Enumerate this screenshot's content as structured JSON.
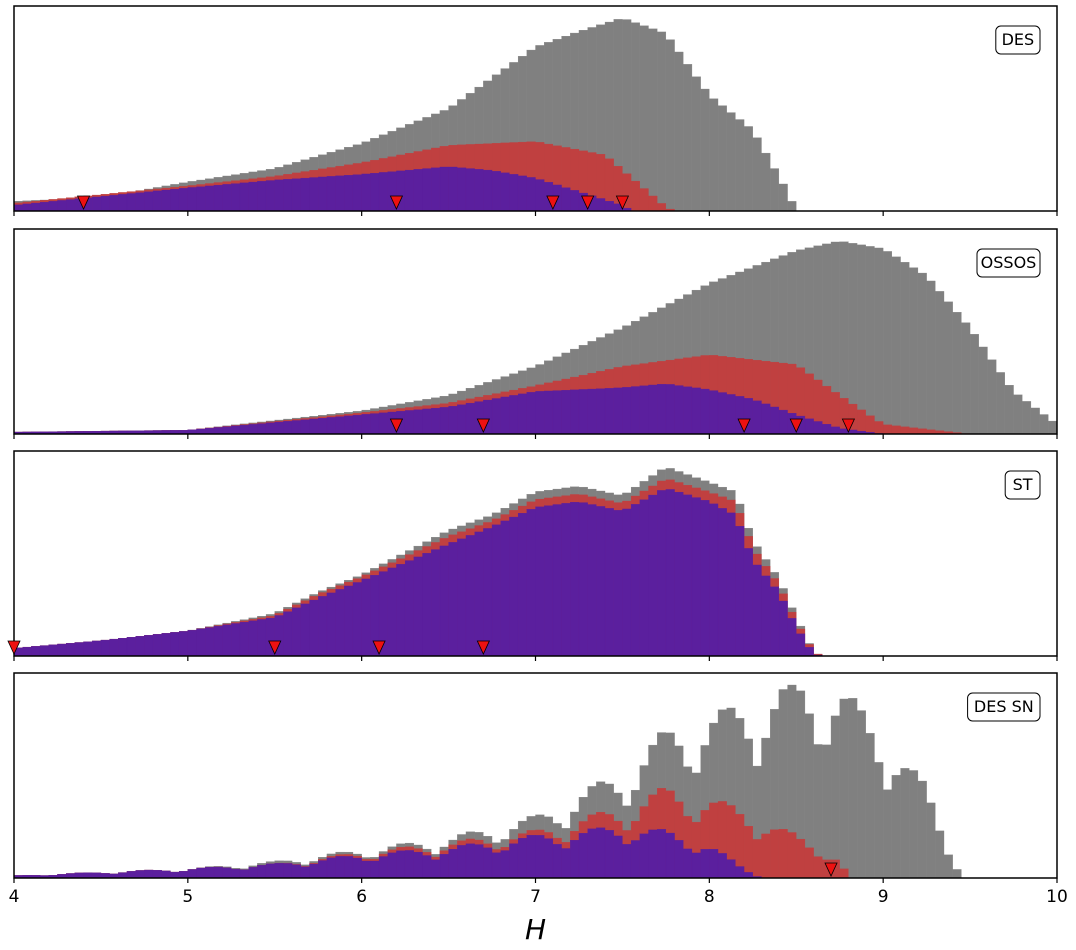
{
  "colors": {
    "all": "#808080",
    "mid": "#c04040",
    "inner": "#5b1f9e",
    "marker": "#ee1111",
    "frame": "#000000"
  },
  "chart_data": {
    "type": "bar",
    "x_axis": {
      "label": "H",
      "range": [
        4,
        10
      ],
      "ticks": [
        "4",
        "5",
        "6",
        "7",
        "8",
        "9",
        "10"
      ]
    },
    "bin_width": 0.05,
    "grid": false,
    "legend": "none",
    "panels": [
      {
        "label": "DES",
        "ylim": [
          0,
          1.0
        ],
        "markers": [
          4.4,
          6.2,
          7.1,
          7.3,
          7.5
        ],
        "series": [
          {
            "values_key": "gray",
            "profile": [
              [
                4.0,
                0.05
              ],
              [
                4.5,
                0.07
              ],
              [
                5.0,
                0.15
              ],
              [
                5.5,
                0.22
              ],
              [
                6.0,
                0.35
              ],
              [
                6.5,
                0.53
              ],
              [
                7.0,
                0.85
              ],
              [
                7.25,
                0.93
              ],
              [
                7.5,
                1.0
              ],
              [
                7.75,
                0.92
              ],
              [
                8.0,
                0.6
              ],
              [
                8.25,
                0.42
              ],
              [
                8.45,
                0.1
              ],
              [
                8.5,
                0.0
              ]
            ]
          },
          {
            "values_key": "red",
            "profile": [
              [
                4.0,
                0.04
              ],
              [
                5.0,
                0.13
              ],
              [
                5.5,
                0.18
              ],
              [
                6.0,
                0.25
              ],
              [
                6.5,
                0.34
              ],
              [
                7.0,
                0.36
              ],
              [
                7.4,
                0.29
              ],
              [
                7.75,
                0.02
              ],
              [
                7.8,
                0.0
              ]
            ]
          },
          {
            "values_key": "purple",
            "profile": [
              [
                4.0,
                0.03
              ],
              [
                5.0,
                0.12
              ],
              [
                5.5,
                0.16
              ],
              [
                6.0,
                0.19
              ],
              [
                6.5,
                0.23
              ],
              [
                6.75,
                0.21
              ],
              [
                7.0,
                0.17
              ],
              [
                7.25,
                0.1
              ],
              [
                7.5,
                0.03
              ],
              [
                7.55,
                0.0
              ]
            ]
          }
        ]
      },
      {
        "label": "OSSOS",
        "ylim": [
          0,
          1.0
        ],
        "markers": [
          6.2,
          6.7,
          8.2,
          8.5,
          8.8
        ],
        "series": [
          {
            "values_key": "gray",
            "profile": [
              [
                4.0,
                0.01
              ],
              [
                5.0,
                0.02
              ],
              [
                6.0,
                0.12
              ],
              [
                6.5,
                0.2
              ],
              [
                7.0,
                0.35
              ],
              [
                7.5,
                0.55
              ],
              [
                8.0,
                0.78
              ],
              [
                8.5,
                0.95
              ],
              [
                8.75,
                1.0
              ],
              [
                9.0,
                0.96
              ],
              [
                9.25,
                0.82
              ],
              [
                9.5,
                0.55
              ],
              [
                9.75,
                0.22
              ],
              [
                10.0,
                0.05
              ]
            ]
          },
          {
            "values_key": "red",
            "profile": [
              [
                4.0,
                0.01
              ],
              [
                5.0,
                0.02
              ],
              [
                6.0,
                0.11
              ],
              [
                6.5,
                0.16
              ],
              [
                7.0,
                0.25
              ],
              [
                7.5,
                0.35
              ],
              [
                8.0,
                0.41
              ],
              [
                8.5,
                0.36
              ],
              [
                8.75,
                0.2
              ],
              [
                9.0,
                0.05
              ],
              [
                9.5,
                0.0
              ]
            ]
          },
          {
            "values_key": "purple",
            "profile": [
              [
                4.0,
                0.01
              ],
              [
                5.0,
                0.02
              ],
              [
                6.0,
                0.1
              ],
              [
                6.5,
                0.14
              ],
              [
                7.0,
                0.22
              ],
              [
                7.5,
                0.24
              ],
              [
                7.75,
                0.26
              ],
              [
                8.0,
                0.23
              ],
              [
                8.25,
                0.18
              ],
              [
                8.5,
                0.1
              ],
              [
                8.75,
                0.03
              ],
              [
                9.0,
                0.0
              ]
            ]
          }
        ]
      },
      {
        "label": "ST",
        "ylim": [
          0,
          1.0
        ],
        "markers": [
          4.0,
          5.5,
          6.1,
          6.7
        ],
        "series": [
          {
            "values_key": "gray",
            "profile": [
              [
                4.0,
                0.04
              ],
              [
                4.5,
                0.08
              ],
              [
                5.0,
                0.13
              ],
              [
                5.5,
                0.22
              ],
              [
                5.75,
                0.33
              ],
              [
                6.0,
                0.42
              ],
              [
                6.5,
                0.65
              ],
              [
                6.75,
                0.73
              ],
              [
                7.0,
                0.85
              ],
              [
                7.25,
                0.88
              ],
              [
                7.5,
                0.83
              ],
              [
                7.75,
                0.98
              ],
              [
                8.0,
                0.9
              ],
              [
                8.15,
                0.85
              ],
              [
                8.25,
                0.6
              ],
              [
                8.4,
                0.4
              ],
              [
                8.5,
                0.2
              ],
              [
                8.6,
                0.02
              ],
              [
                8.65,
                0.0
              ]
            ]
          },
          {
            "values_key": "red",
            "profile": [
              [
                4.0,
                0.04
              ],
              [
                4.5,
                0.08
              ],
              [
                5.0,
                0.13
              ],
              [
                5.5,
                0.21
              ],
              [
                5.75,
                0.32
              ],
              [
                6.0,
                0.41
              ],
              [
                6.5,
                0.62
              ],
              [
                6.75,
                0.7
              ],
              [
                7.0,
                0.81
              ],
              [
                7.25,
                0.84
              ],
              [
                7.5,
                0.79
              ],
              [
                7.75,
                0.92
              ],
              [
                8.0,
                0.85
              ],
              [
                8.15,
                0.8
              ],
              [
                8.25,
                0.56
              ],
              [
                8.4,
                0.37
              ],
              [
                8.5,
                0.18
              ],
              [
                8.6,
                0.02
              ],
              [
                8.65,
                0.0
              ]
            ]
          },
          {
            "values_key": "purple",
            "profile": [
              [
                4.0,
                0.04
              ],
              [
                4.5,
                0.08
              ],
              [
                5.0,
                0.13
              ],
              [
                5.5,
                0.2
              ],
              [
                5.75,
                0.3
              ],
              [
                6.0,
                0.39
              ],
              [
                6.5,
                0.58
              ],
              [
                6.75,
                0.67
              ],
              [
                7.0,
                0.77
              ],
              [
                7.25,
                0.8
              ],
              [
                7.5,
                0.75
              ],
              [
                7.75,
                0.87
              ],
              [
                8.0,
                0.8
              ],
              [
                8.15,
                0.73
              ],
              [
                8.25,
                0.5
              ],
              [
                8.4,
                0.33
              ],
              [
                8.5,
                0.15
              ],
              [
                8.6,
                0.01
              ],
              [
                8.65,
                0.0
              ]
            ]
          }
        ]
      },
      {
        "label": "DES SN",
        "ylim": [
          0,
          1.0
        ],
        "markers": [
          8.7
        ],
        "series": [
          {
            "values_key": "gray",
            "profile": [
              [
                4.0,
                0.01
              ],
              [
                5.0,
                0.04
              ],
              [
                5.5,
                0.07
              ],
              [
                6.0,
                0.12
              ],
              [
                6.5,
                0.17
              ],
              [
                7.0,
                0.26
              ],
              [
                7.5,
                0.45
              ],
              [
                7.75,
                0.62
              ],
              [
                8.0,
                0.68
              ],
              [
                8.25,
                0.75
              ],
              [
                8.5,
                0.82
              ],
              [
                8.75,
                0.8
              ],
              [
                9.0,
                0.62
              ],
              [
                9.25,
                0.38
              ],
              [
                9.4,
                0.1
              ],
              [
                9.45,
                0.0
              ]
            ]
          },
          {
            "values_key": "red",
            "profile": [
              [
                4.0,
                0.01
              ],
              [
                5.0,
                0.04
              ],
              [
                5.5,
                0.06
              ],
              [
                6.0,
                0.11
              ],
              [
                6.5,
                0.15
              ],
              [
                7.0,
                0.2
              ],
              [
                7.5,
                0.3
              ],
              [
                7.75,
                0.38
              ],
              [
                8.0,
                0.34
              ],
              [
                8.25,
                0.27
              ],
              [
                8.5,
                0.18
              ],
              [
                8.75,
                0.08
              ],
              [
                8.8,
                0.0
              ]
            ]
          },
          {
            "values_key": "purple",
            "profile": [
              [
                4.0,
                0.01
              ],
              [
                5.0,
                0.04
              ],
              [
                5.5,
                0.06
              ],
              [
                6.0,
                0.1
              ],
              [
                6.5,
                0.13
              ],
              [
                7.0,
                0.18
              ],
              [
                7.5,
                0.22
              ],
              [
                7.75,
                0.2
              ],
              [
                8.0,
                0.14
              ],
              [
                8.2,
                0.04
              ],
              [
                8.3,
                0.0
              ]
            ]
          }
        ]
      }
    ]
  }
}
